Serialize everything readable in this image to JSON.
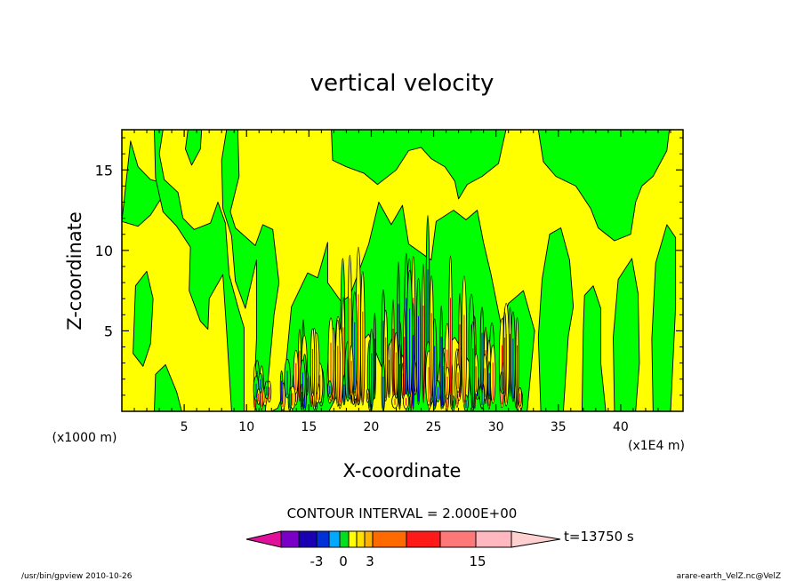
{
  "chart_data": {
    "type": "contour",
    "title": "vertical velocity",
    "xlabel": "X-coordinate",
    "ylabel": "Z-coordinate",
    "x_unit_left": "(x1000 m)",
    "x_unit_right": "(x1E4 m)",
    "xticks": [
      "5",
      "10",
      "15",
      "20",
      "25",
      "30",
      "35",
      "40"
    ],
    "yticks": [
      "5",
      "10",
      "15"
    ],
    "xlim": [
      0,
      45
    ],
    "ylim": [
      0,
      17.5
    ],
    "contour_interval_text": "CONTOUR INTERVAL = 2.000E+00",
    "time_label": "t=13750 s",
    "colorbar_labels": [
      "-3",
      "0",
      "3",
      "15"
    ],
    "colorbar_colors": [
      "#e0109a",
      "#7a00c8",
      "#1a00b0",
      "#0030d8",
      "#00a8ff",
      "#00e020",
      "#ffff00",
      "#ffe000",
      "#ffb000",
      "#ff6a00",
      "#ff1a1a",
      "#ff7878",
      "#ffb8c0",
      "#ffd0d0"
    ],
    "region_colors": {
      "updraft": "#ffff00",
      "downdraft": "#00ff00",
      "strong_updraft": "#ff0000",
      "strong_downdraft": "#0000ff"
    },
    "green_regions": [
      [
        [
          0,
          11.8
        ],
        [
          0.7,
          16.8
        ],
        [
          1.3,
          15.2
        ],
        [
          2.3,
          14.4
        ],
        [
          3.3,
          14.2
        ],
        [
          3.2,
          13.3
        ],
        [
          2.3,
          12.2
        ],
        [
          1.3,
          11.5
        ]
      ],
      [
        [
          0.9,
          3.6
        ],
        [
          1.1,
          7.8
        ],
        [
          2.0,
          8.7
        ],
        [
          2.5,
          7.0
        ],
        [
          2.3,
          4.2
        ],
        [
          1.7,
          2.8
        ]
      ],
      [
        [
          2.6,
          0
        ],
        [
          2.7,
          2.3
        ],
        [
          3.5,
          2.9
        ],
        [
          4.4,
          1.2
        ],
        [
          4.8,
          0
        ]
      ],
      [
        [
          3.3,
          17.5
        ],
        [
          3.0,
          16.0
        ],
        [
          3.4,
          14.4
        ],
        [
          4.5,
          13.6
        ],
        [
          4.9,
          12.0
        ],
        [
          5.8,
          11.3
        ],
        [
          7.1,
          11.7
        ],
        [
          7.7,
          13.0
        ],
        [
          8.3,
          11.7
        ],
        [
          8.6,
          8.5
        ],
        [
          9.3,
          6.5
        ],
        [
          9.8,
          5.2
        ],
        [
          9.8,
          0
        ],
        [
          8.8,
          0
        ],
        [
          8.4,
          5.0
        ],
        [
          8.1,
          8.5
        ],
        [
          7.0,
          7.0
        ],
        [
          6.9,
          5.1
        ],
        [
          6.3,
          5.6
        ],
        [
          5.4,
          7.5
        ],
        [
          5.5,
          10.2
        ],
        [
          4.4,
          11.5
        ],
        [
          3.3,
          12.4
        ],
        [
          2.7,
          14.5
        ],
        [
          2.6,
          17.5
        ]
      ],
      [
        [
          5.3,
          17.5
        ],
        [
          5.1,
          16.3
        ],
        [
          5.6,
          15.3
        ],
        [
          6.3,
          16.3
        ],
        [
          6.4,
          17.5
        ]
      ],
      [
        [
          9.3,
          17.5
        ],
        [
          9.4,
          14.6
        ],
        [
          8.7,
          12.4
        ],
        [
          9.1,
          11.4
        ],
        [
          10.7,
          10.3
        ],
        [
          11.3,
          11.6
        ],
        [
          12.1,
          11.3
        ],
        [
          12.6,
          8.0
        ],
        [
          12.2,
          6.0
        ],
        [
          11.5,
          0
        ],
        [
          12.8,
          0
        ],
        [
          13.6,
          6.5
        ],
        [
          14.9,
          8.6
        ],
        [
          15.7,
          8.3
        ],
        [
          16.5,
          10.5
        ],
        [
          16.5,
          8.0
        ],
        [
          17.6,
          6.8
        ],
        [
          18.3,
          7.2
        ],
        [
          19.8,
          10.4
        ],
        [
          20.6,
          13.0
        ],
        [
          21.6,
          11.6
        ],
        [
          22.5,
          12.8
        ],
        [
          23.0,
          10.4
        ],
        [
          24.8,
          9.4
        ],
        [
          25.2,
          11.8
        ],
        [
          26.6,
          12.5
        ],
        [
          27.6,
          11.9
        ],
        [
          28.5,
          12.5
        ],
        [
          29.0,
          10.5
        ],
        [
          29.6,
          8.5
        ],
        [
          30.4,
          5.4
        ],
        [
          31.0,
          6.7
        ],
        [
          32.2,
          7.5
        ],
        [
          33.1,
          5.0
        ],
        [
          32.5,
          0
        ],
        [
          27.7,
          0
        ],
        [
          27.9,
          3.0
        ],
        [
          26.7,
          4.6
        ],
        [
          25.6,
          3.7
        ],
        [
          25.2,
          1.2
        ],
        [
          24.6,
          0
        ],
        [
          22.8,
          0
        ],
        [
          22.8,
          3.0
        ],
        [
          21.7,
          4.6
        ],
        [
          20.8,
          2.8
        ],
        [
          19.8,
          4.8
        ],
        [
          18.4,
          3.6
        ],
        [
          17.4,
          1.2
        ],
        [
          16.6,
          0
        ],
        [
          13.7,
          0
        ],
        [
          13.3,
          1.8
        ],
        [
          12.5,
          0.2
        ],
        [
          12.0,
          0
        ],
        [
          10.8,
          0
        ],
        [
          10.6,
          1.0
        ],
        [
          10.8,
          4.5
        ],
        [
          10.8,
          9.4
        ],
        [
          9.9,
          6.4
        ],
        [
          9.1,
          8.1
        ],
        [
          8.8,
          10.9
        ],
        [
          8.1,
          12.6
        ],
        [
          8.0,
          15.6
        ],
        [
          8.4,
          17.5
        ]
      ],
      [
        [
          16.8,
          17.5
        ],
        [
          16.9,
          15.6
        ],
        [
          18.0,
          15.2
        ],
        [
          19.4,
          14.8
        ],
        [
          20.5,
          14.1
        ],
        [
          22.0,
          15.0
        ],
        [
          23.0,
          16.2
        ],
        [
          24.0,
          16.4
        ],
        [
          24.8,
          15.7
        ],
        [
          25.9,
          15.2
        ],
        [
          26.7,
          14.3
        ],
        [
          27.0,
          13.2
        ],
        [
          27.7,
          14.1
        ],
        [
          28.9,
          14.6
        ],
        [
          30.2,
          15.4
        ],
        [
          30.8,
          17.5
        ]
      ],
      [
        [
          33.4,
          17.5
        ],
        [
          33.8,
          15.5
        ],
        [
          34.8,
          14.6
        ],
        [
          36.4,
          14.0
        ],
        [
          37.6,
          12.6
        ],
        [
          38.2,
          11.4
        ],
        [
          39.5,
          10.6
        ],
        [
          40.8,
          11.0
        ],
        [
          41.2,
          13.0
        ],
        [
          41.7,
          14.0
        ],
        [
          42.6,
          14.6
        ],
        [
          43.7,
          16.2
        ],
        [
          43.9,
          17.5
        ]
      ],
      [
        [
          33.6,
          0
        ],
        [
          33.4,
          4.6
        ],
        [
          33.7,
          8.2
        ],
        [
          34.3,
          11.0
        ],
        [
          35.2,
          11.4
        ],
        [
          35.9,
          9.4
        ],
        [
          36.2,
          6.5
        ],
        [
          35.8,
          4.7
        ],
        [
          35.4,
          0
        ]
      ],
      [
        [
          36.9,
          0
        ],
        [
          37.0,
          5.0
        ],
        [
          37.1,
          7.2
        ],
        [
          37.8,
          7.8
        ],
        [
          38.4,
          6.4
        ],
        [
          38.4,
          3.0
        ],
        [
          38.8,
          0
        ]
      ],
      [
        [
          39.5,
          0
        ],
        [
          39.4,
          4.6
        ],
        [
          39.8,
          8.2
        ],
        [
          40.9,
          9.5
        ],
        [
          41.4,
          7.3
        ],
        [
          41.5,
          3.0
        ],
        [
          41.2,
          0
        ]
      ],
      [
        [
          42.6,
          0
        ],
        [
          42.5,
          4.5
        ],
        [
          42.8,
          9.2
        ],
        [
          43.7,
          11.6
        ],
        [
          44.4,
          10.8
        ],
        [
          44.4,
          6.5
        ],
        [
          44.0,
          0
        ]
      ]
    ]
  },
  "footer": {
    "left": "/usr/bin/gpview  2010-10-26",
    "right": "arare-earth_VelZ.nc@VelZ"
  }
}
